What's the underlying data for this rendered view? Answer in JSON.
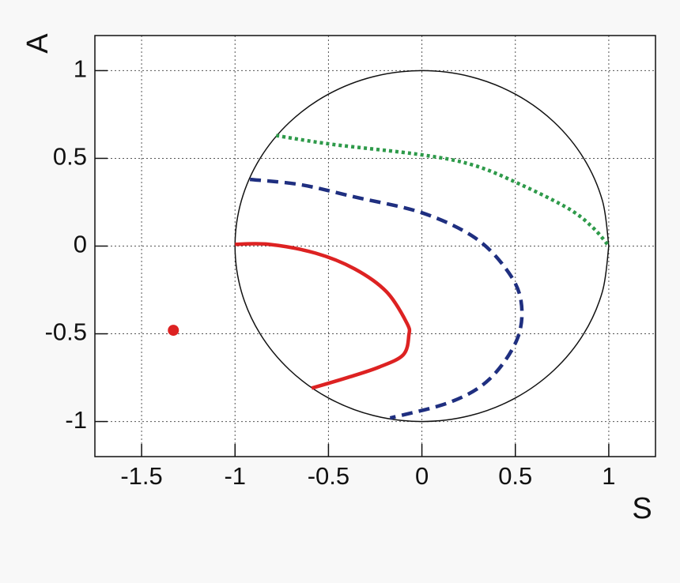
{
  "chart_data": {
    "type": "line",
    "x_label": "S",
    "y_label": "A",
    "xlim": [
      -1.75,
      1.25
    ],
    "ylim": [
      -1.2,
      1.2
    ],
    "xticks": [
      -1.5,
      -1,
      -0.5,
      0,
      0.5,
      1
    ],
    "yticks": [
      -1,
      -0.5,
      0,
      0.5,
      1
    ],
    "grid": true,
    "series": [
      {
        "color": "#111111",
        "style": "solid",
        "smooth": true,
        "x": [
          1,
          0.966,
          0.866,
          0.707,
          0.5,
          0.259,
          0,
          -0.259,
          -0.5,
          -0.707,
          -0.866,
          -0.966,
          -1,
          -0.966,
          -0.866,
          -0.707,
          -0.5,
          -0.259,
          0,
          0.259,
          0.5,
          0.707,
          0.866,
          0.966,
          1
        ],
        "values": [
          0,
          0.259,
          0.5,
          0.707,
          0.866,
          0.966,
          1,
          0.966,
          0.866,
          0.707,
          0.5,
          0.259,
          0,
          -0.259,
          -0.5,
          -0.707,
          -0.866,
          -0.966,
          -1,
          -0.966,
          -0.866,
          -0.707,
          -0.5,
          -0.259,
          0
        ]
      },
      {
        "color": "#dd2222",
        "style": "solid",
        "smooth": true,
        "x": [
          -1,
          -0.82,
          -0.57,
          -0.36,
          -0.19,
          -0.08,
          -0.07,
          -0.1,
          -0.23,
          -0.4,
          -0.59
        ],
        "values": [
          0.01,
          0.01,
          -0.04,
          -0.13,
          -0.26,
          -0.44,
          -0.51,
          -0.62,
          -0.69,
          -0.75,
          -0.81
        ]
      },
      {
        "color": "#1f2f80",
        "style": "dashed",
        "smooth": true,
        "x": [
          -0.92,
          -0.65,
          -0.36,
          0,
          0.28,
          0.45,
          0.53,
          0.51,
          0.36,
          0.15,
          -0.17
        ],
        "values": [
          0.38,
          0.35,
          0.28,
          0.19,
          0.05,
          -0.13,
          -0.31,
          -0.53,
          -0.76,
          -0.89,
          -0.98
        ]
      },
      {
        "color": "#2e9a4a",
        "style": "dotted",
        "smooth": true,
        "x": [
          -0.78,
          -0.48,
          0,
          0.28,
          0.53,
          0.79,
          0.92,
          1
        ],
        "values": [
          0.63,
          0.58,
          0.52,
          0.46,
          0.35,
          0.21,
          0.1,
          0
        ]
      },
      {
        "color": "#dd2222",
        "style": "point",
        "x": [
          -1.33
        ],
        "values": [
          -0.48
        ]
      }
    ]
  }
}
